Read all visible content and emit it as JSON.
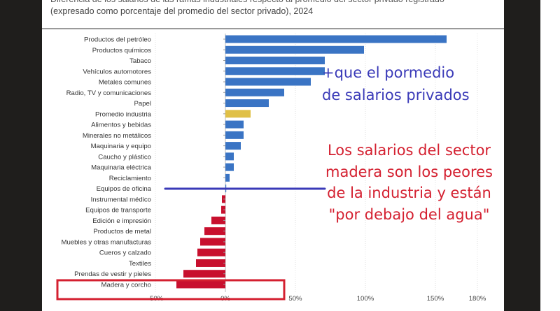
{
  "header": {
    "title_line1": "Diferencia de los salarios de las ramas industriales respecto al promedio del sector privado registrado",
    "title_line2": "(expresado como porcentaje del promedio del sector privado), 2024"
  },
  "annotations": {
    "blue_line1": "+que el pormedio",
    "blue_line2": "de salarios privados",
    "red_text": "Los salarios del sector madera son los peores de la industria y están \"por debajo del agua\""
  },
  "colors": {
    "positive": "#3a74c4",
    "average": "#e0c046",
    "negative": "#c8102e",
    "annotation_blue": "#3a3ab8",
    "annotation_red": "#d42030"
  },
  "chart_data": {
    "type": "bar",
    "orientation": "horizontal",
    "categories": [
      "Productos del petróleo",
      "Productos químicos",
      "Tabaco",
      "Vehículos automotores",
      "Metales comunes",
      "Radio, TV y comunicaciones",
      "Papel",
      "Promedio industria",
      "Alimentos y bebidas",
      "Minerales no metálicos",
      "Maquinaria y equipo",
      "Caucho y plástico",
      "Maquinaria eléctrica",
      "Reciclamiento",
      "Equipos de oficina",
      "Instrumental médico",
      "Equipos de transporte",
      "Edición e impresión",
      "Productos de metal",
      "Muebles y otras manufacturas",
      "Cueros y calzado",
      "Textiles",
      "Prendas de vestir y pieles",
      "Madera y corcho"
    ],
    "values": [
      158,
      99,
      71,
      71,
      61,
      42,
      31,
      18,
      13,
      13,
      11,
      6,
      6,
      3,
      0.5,
      -2.5,
      -3,
      -10,
      -15,
      -18,
      -20,
      -21,
      -30,
      -35
    ],
    "xlim": [
      -50,
      180
    ],
    "xticks": [
      "-50%",
      "0%",
      "50%",
      "100%",
      "150%",
      "180%"
    ],
    "xtick_values": [
      -50,
      0,
      50,
      100,
      150,
      180
    ],
    "grid": "vertical dotted",
    "highlight": "Madera y corcho"
  }
}
